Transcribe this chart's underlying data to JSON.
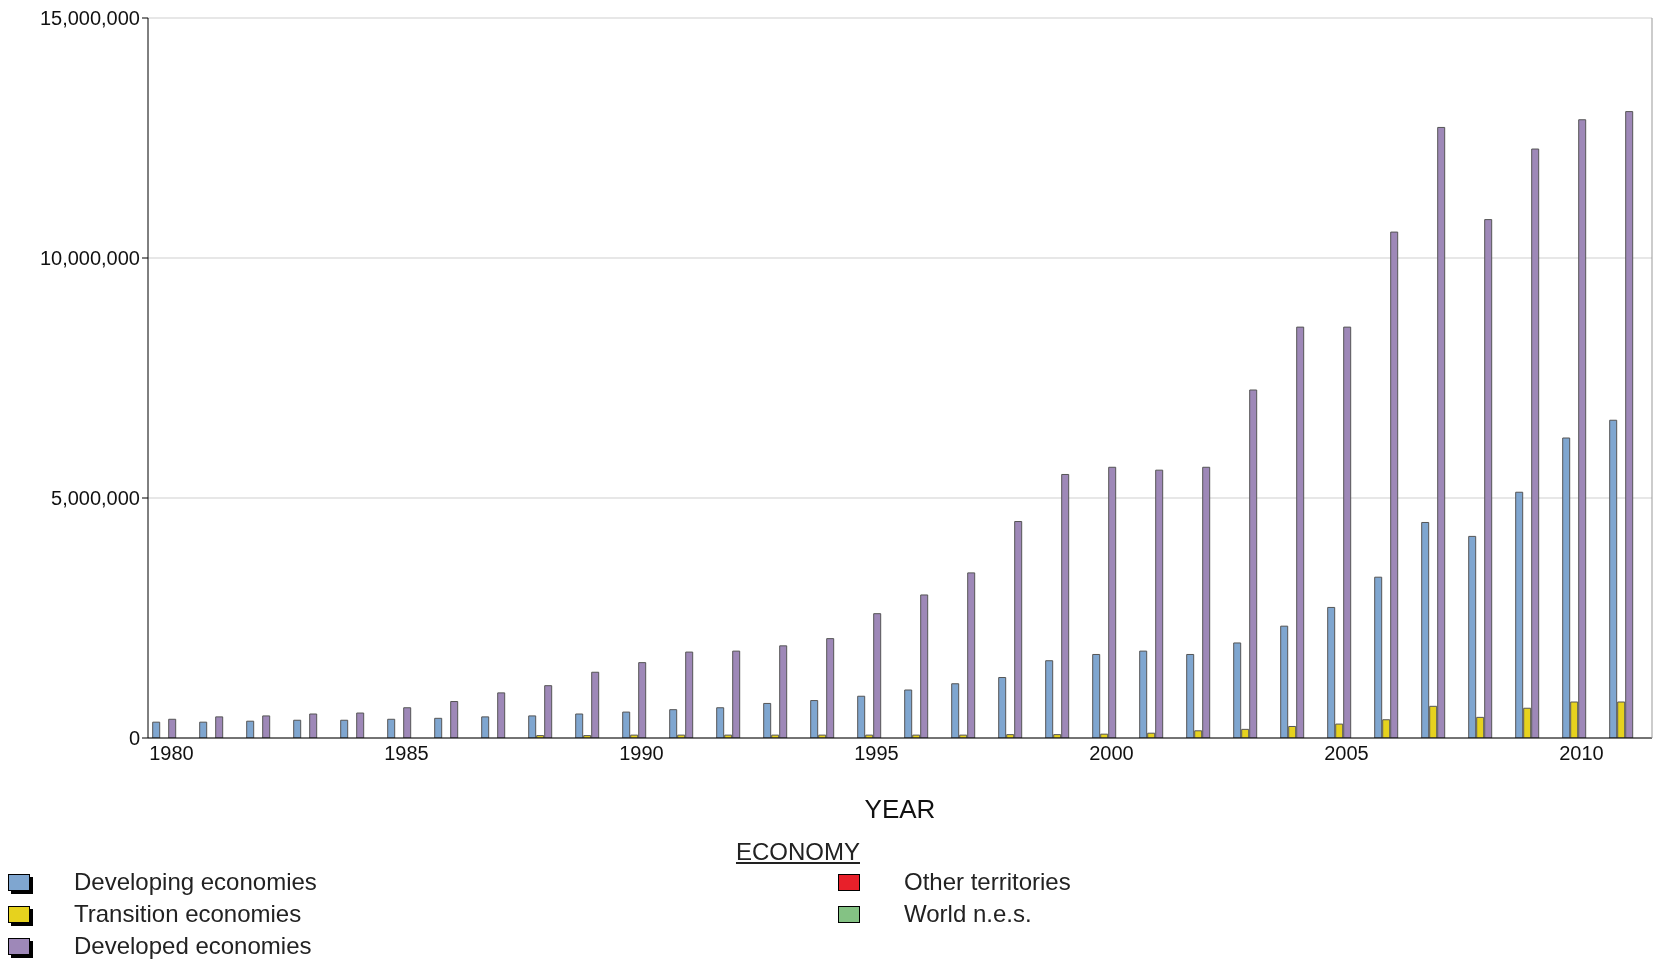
{
  "chart_data": {
    "type": "bar",
    "xlabel": "YEAR",
    "legend_title": "ECONOMY",
    "legend": "bottom",
    "grid": "y",
    "categories": [
      "1980",
      null,
      null,
      null,
      null,
      "1985",
      null,
      null,
      null,
      null,
      "1990",
      null,
      null,
      null,
      null,
      "1995",
      null,
      null,
      null,
      null,
      "2000",
      null,
      null,
      null,
      null,
      "2005",
      null,
      null,
      null,
      null,
      "2010",
      null
    ],
    "ylim": [
      0,
      15000000
    ],
    "yticks": [
      0,
      {
        "value": 5000000,
        "label": "5,000,000"
      },
      {
        "value": 10000000,
        "label": "10,000,000"
      },
      {
        "value": 15000000,
        "label": "15,000,000"
      }
    ],
    "series": [
      {
        "name": "Developing economies",
        "color": "#7fa6d0",
        "values": [
          330000,
          330000,
          350000,
          370000,
          370000,
          390000,
          410000,
          440000,
          460000,
          500000,
          540000,
          590000,
          630000,
          720000,
          780000,
          870000,
          1000000,
          1130000,
          1260000,
          1610000,
          1740000,
          1810000,
          1740000,
          1980000,
          2330000,
          2720000,
          3350000,
          4490000,
          4200000,
          5120000,
          6250000,
          6620000
        ]
      },
      {
        "name": "Transition economies",
        "color": "#e6d21e",
        "values": [
          null,
          null,
          null,
          null,
          null,
          null,
          null,
          null,
          50000,
          50000,
          60000,
          60000,
          60000,
          60000,
          60000,
          60000,
          60000,
          60000,
          70000,
          70000,
          80000,
          100000,
          150000,
          180000,
          240000,
          290000,
          380000,
          660000,
          430000,
          620000,
          750000,
          750000
        ]
      },
      {
        "name": "Developed economies",
        "color": "#9e88b8",
        "values": [
          390000,
          440000,
          460000,
          500000,
          520000,
          630000,
          760000,
          940000,
          1090000,
          1370000,
          1570000,
          1790000,
          1810000,
          1920000,
          2070000,
          2590000,
          2980000,
          3440000,
          4510000,
          5490000,
          5640000,
          5580000,
          5640000,
          7250000,
          8560000,
          8560000,
          10540000,
          12720000,
          10800000,
          12270000,
          12880000,
          13050000
        ]
      },
      {
        "name": "Other territories",
        "color": "#e8202a",
        "values": [
          0,
          0,
          0,
          0,
          0,
          0,
          0,
          0,
          0,
          0,
          0,
          0,
          0,
          0,
          0,
          0,
          0,
          0,
          0,
          0,
          0,
          0,
          0,
          0,
          0,
          0,
          0,
          0,
          0,
          0,
          0,
          0
        ]
      },
      {
        "name": "World n.e.s.",
        "color": "#84c284",
        "values": [
          0,
          0,
          0,
          0,
          0,
          0,
          0,
          0,
          0,
          0,
          0,
          0,
          0,
          0,
          0,
          0,
          0,
          0,
          0,
          0,
          0,
          0,
          0,
          0,
          0,
          0,
          0,
          0,
          0,
          0,
          0,
          0
        ]
      }
    ]
  }
}
